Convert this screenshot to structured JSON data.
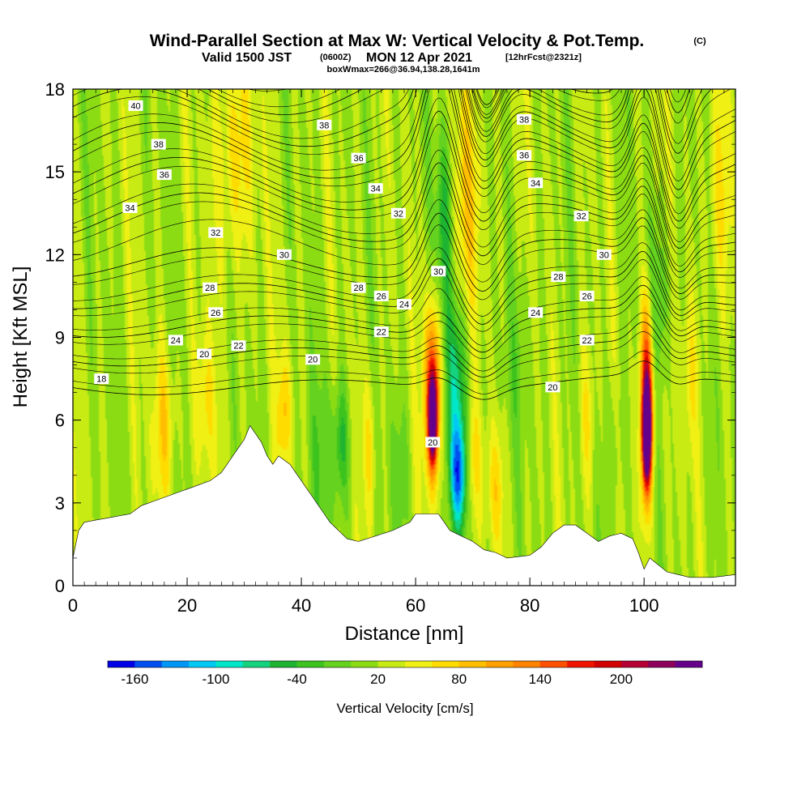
{
  "title": {
    "main": "Wind-Parallel Section at Max W: Vertical Velocity & Pot.Temp.",
    "copyright": "(C)",
    "valid_prefix": "Valid 1500 JST",
    "valid_z": "(0600Z)",
    "valid_date": "MON 12 Apr 2021",
    "forecast": "[12hrFcst@2321z]",
    "box": "boxWmax=266@36.94,138.28,1641m"
  },
  "chart_data": {
    "type": "heatmap",
    "xlabel": "Distance [nm]",
    "ylabel": "Height [Kft MSL]",
    "xlim": [
      0,
      116
    ],
    "ylim": [
      0,
      18
    ],
    "x_ticks": [
      "0",
      "20",
      "40",
      "60",
      "80",
      "100"
    ],
    "y_ticks": [
      "0",
      "3",
      "6",
      "9",
      "12",
      "15",
      "18"
    ],
    "background_w": 20,
    "terrain": {
      "x": [
        0,
        1,
        2,
        10,
        12,
        16,
        20,
        24,
        26,
        27,
        30,
        31,
        32,
        33,
        34,
        35,
        36,
        38,
        39,
        40,
        41,
        42,
        43,
        44,
        45,
        46,
        47,
        48,
        50,
        56,
        59,
        60,
        64,
        66,
        70,
        72,
        74,
        75,
        76,
        80,
        82,
        84,
        86,
        88,
        90,
        92,
        94,
        96,
        98,
        99,
        100,
        101,
        104,
        108,
        112,
        116
      ],
      "h": [
        1.0,
        2.0,
        2.3,
        2.6,
        2.9,
        3.2,
        3.5,
        3.8,
        4.1,
        4.4,
        5.3,
        5.8,
        5.5,
        5.2,
        4.7,
        4.4,
        4.7,
        4.4,
        4.1,
        3.8,
        3.5,
        3.2,
        2.9,
        2.6,
        2.3,
        2.1,
        1.9,
        1.7,
        1.6,
        2.0,
        2.3,
        2.6,
        2.6,
        2.0,
        1.6,
        1.3,
        1.2,
        1.1,
        1.0,
        1.1,
        1.4,
        1.9,
        2.2,
        2.2,
        1.9,
        1.6,
        1.8,
        1.9,
        1.7,
        1.2,
        0.6,
        1.0,
        0.5,
        0.3,
        0.3,
        0.4
      ]
    },
    "w_features": [
      {
        "x": 16,
        "z": 5.9,
        "sx": 1.4,
        "sz": 2.0,
        "w": 55
      },
      {
        "x": 23,
        "z": 6.5,
        "sx": 1.2,
        "sz": 1.8,
        "w": 45
      },
      {
        "x": 28,
        "z": 15.5,
        "sx": 2.5,
        "sz": 3.0,
        "w": 50
      },
      {
        "x": 37,
        "z": 6.3,
        "sx": 0.9,
        "sz": 1.6,
        "w": 60
      },
      {
        "x": 44,
        "z": 4.8,
        "sx": 2.0,
        "sz": 2.2,
        "w": -30
      },
      {
        "x": 47,
        "z": 5.2,
        "sx": 1.0,
        "sz": 1.5,
        "w": -55
      },
      {
        "x": 52,
        "z": 5.0,
        "sx": 0.8,
        "sz": 2.0,
        "w": 45
      },
      {
        "x": 57,
        "z": 4.0,
        "sx": 1.2,
        "sz": 2.0,
        "w": -30
      },
      {
        "x": 63,
        "z": 7.0,
        "sx": 1.0,
        "sz": 2.2,
        "w": 170
      },
      {
        "x": 63,
        "z": 6.0,
        "sx": 0.5,
        "sz": 1.0,
        "w": 220
      },
      {
        "x": 65,
        "z": 13.0,
        "sx": 1.0,
        "sz": 2.5,
        "w": -80
      },
      {
        "x": 67,
        "z": 7.5,
        "sx": 1.5,
        "sz": 2.0,
        "w": -80
      },
      {
        "x": 67.5,
        "z": 4.0,
        "sx": 1.1,
        "sz": 1.4,
        "w": -150
      },
      {
        "x": 69,
        "z": 14.0,
        "sx": 2.0,
        "sz": 3.0,
        "w": 50
      },
      {
        "x": 70,
        "z": 4.5,
        "sx": 1.2,
        "sz": 1.5,
        "w": 40
      },
      {
        "x": 74,
        "z": 3.5,
        "sx": 1.0,
        "sz": 1.5,
        "w": 45
      },
      {
        "x": 78,
        "z": 8.0,
        "sx": 2.0,
        "sz": 2.0,
        "w": -20
      },
      {
        "x": 90,
        "z": 6.0,
        "sx": 1.0,
        "sz": 2.0,
        "w": 40
      },
      {
        "x": 95,
        "z": 5.0,
        "sx": 1.0,
        "sz": 2.0,
        "w": -25
      },
      {
        "x": 100.5,
        "z": 6.8,
        "sx": 0.8,
        "sz": 2.5,
        "w": 180
      },
      {
        "x": 100.5,
        "z": 5.5,
        "sx": 0.5,
        "sz": 1.2,
        "w": 266
      },
      {
        "x": 102.5,
        "z": 10.5,
        "sx": 1.5,
        "sz": 2.0,
        "w": -40
      },
      {
        "x": 108,
        "z": 7.5,
        "sx": 1.0,
        "sz": 2.0,
        "w": 35
      },
      {
        "x": 113,
        "z": 14.0,
        "sx": 1.5,
        "sz": 3.0,
        "w": 40
      }
    ],
    "theta_levels": [
      18,
      20,
      22,
      24,
      26,
      28,
      30,
      32,
      34,
      36,
      38,
      40
    ],
    "theta_labels": [
      {
        "text": "40",
        "x": 11,
        "y": 17.4
      },
      {
        "text": "38",
        "x": 15,
        "y": 16.0
      },
      {
        "text": "38",
        "x": 44,
        "y": 16.7
      },
      {
        "text": "38",
        "x": 79,
        "y": 16.9
      },
      {
        "text": "36",
        "x": 16,
        "y": 14.9
      },
      {
        "text": "36",
        "x": 50,
        "y": 15.5
      },
      {
        "text": "36",
        "x": 79,
        "y": 15.6
      },
      {
        "text": "34",
        "x": 10,
        "y": 13.7
      },
      {
        "text": "34",
        "x": 53,
        "y": 14.4
      },
      {
        "text": "34",
        "x": 81,
        "y": 14.6
      },
      {
        "text": "32",
        "x": 25,
        "y": 12.8
      },
      {
        "text": "32",
        "x": 57,
        "y": 13.5
      },
      {
        "text": "32",
        "x": 89,
        "y": 13.4
      },
      {
        "text": "30",
        "x": 37,
        "y": 12.0
      },
      {
        "text": "30",
        "x": 64,
        "y": 11.4
      },
      {
        "text": "30",
        "x": 93,
        "y": 12.0
      },
      {
        "text": "28",
        "x": 24,
        "y": 10.8
      },
      {
        "text": "28",
        "x": 50,
        "y": 10.8
      },
      {
        "text": "28",
        "x": 85,
        "y": 11.2
      },
      {
        "text": "26",
        "x": 25,
        "y": 9.9
      },
      {
        "text": "26",
        "x": 54,
        "y": 10.5
      },
      {
        "text": "26",
        "x": 90,
        "y": 10.5
      },
      {
        "text": "24",
        "x": 18,
        "y": 8.9
      },
      {
        "text": "24",
        "x": 58,
        "y": 10.2
      },
      {
        "text": "24",
        "x": 81,
        "y": 9.9
      },
      {
        "text": "22",
        "x": 29,
        "y": 8.7
      },
      {
        "text": "22",
        "x": 54,
        "y": 9.2
      },
      {
        "text": "22",
        "x": 90,
        "y": 8.9
      },
      {
        "text": "20",
        "x": 23,
        "y": 8.4
      },
      {
        "text": "20",
        "x": 42,
        "y": 8.2
      },
      {
        "text": "20",
        "x": 84,
        "y": 7.2
      },
      {
        "text": "20",
        "x": 63,
        "y": 5.2
      },
      {
        "text": "18",
        "x": 5,
        "y": 7.5
      }
    ],
    "colorbar": {
      "label": "Vertical Velocity [cm/s]",
      "tick_labels": [
        "-160",
        "-100",
        "-40",
        "20",
        "80",
        "140",
        "200"
      ],
      "tick_values": [
        -160,
        -100,
        -40,
        20,
        80,
        140,
        200
      ],
      "bounds": [
        -180,
        -160,
        -140,
        -120,
        -100,
        -80,
        -60,
        -40,
        -20,
        0,
        20,
        40,
        60,
        80,
        100,
        120,
        140,
        160,
        180,
        200,
        220,
        240
      ],
      "colors": [
        "#0000e6",
        "#0050f0",
        "#0096f5",
        "#00c8f5",
        "#00e6c8",
        "#14d27e",
        "#1eb432",
        "#3cc31e",
        "#64d21e",
        "#8cdc14",
        "#c8eb14",
        "#f0f014",
        "#ffdc00",
        "#ffbe00",
        "#ffa000",
        "#ff8200",
        "#ff5000",
        "#f01400",
        "#d20000",
        "#b40032",
        "#8c005a",
        "#64008c"
      ]
    }
  }
}
